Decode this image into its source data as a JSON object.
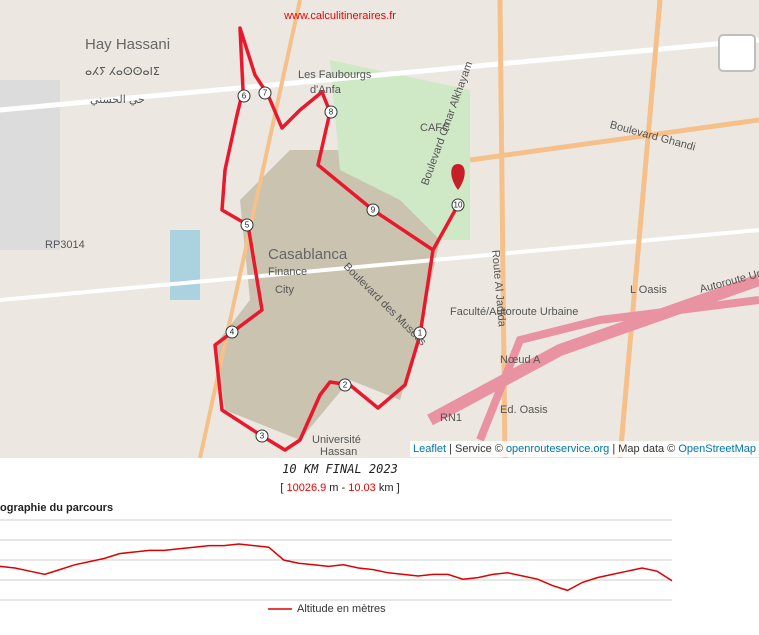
{
  "site": "www.calculitineraires.fr",
  "map_labels": [
    "Hay Hassani",
    "ⴰⵃⵢ ⵃⴰⵙⵙⴰⵏⵉ",
    "حي الحسني",
    "Les Faubourgs",
    "d'Anfa",
    "CAFC",
    "Casablanca",
    "Finance",
    "City",
    "Boulevard des Musées",
    "Boulevard Omar Alkhayam",
    "Boulevard Ghandi",
    "Route Al Jadida",
    "L Oasis",
    "Autoroute Urbaine",
    "Faculté/Autoroute Urbaine",
    "Nœud A",
    "RN1",
    "Ed. Oasis",
    "RP3014",
    "Université",
    "Hassan"
  ],
  "markers": [
    "1",
    "2",
    "3",
    "4",
    "5",
    "6",
    "7",
    "8",
    "9",
    "10"
  ],
  "attribution": [
    "Leaflet",
    " | Service © ",
    "openrouteservice.org",
    " | Map data © ",
    "OpenStreetMap"
  ],
  "title": "10 KM FINAL 2023",
  "distance": {
    "open": "[",
    "meters": 10026.9,
    "unit_m": "m",
    "sep": "-",
    "km": 10.03,
    "unit_km": "km",
    "close": "]"
  },
  "profile_title": "ographie du parcours",
  "elevation": {
    "type": "line",
    "name": "Altitude en mètres",
    "color": "#e00000",
    "ylim": [
      20,
      70
    ],
    "values": [
      41,
      40,
      38,
      36,
      39,
      42,
      44,
      46,
      49,
      50,
      51,
      51,
      52,
      53,
      54,
      54,
      55,
      54,
      53,
      45,
      43,
      42,
      41,
      42,
      40,
      39,
      37,
      36,
      35,
      36,
      36,
      33,
      34,
      36,
      37,
      35,
      33,
      29,
      26,
      31,
      34,
      36,
      38,
      40,
      38,
      32
    ]
  }
}
